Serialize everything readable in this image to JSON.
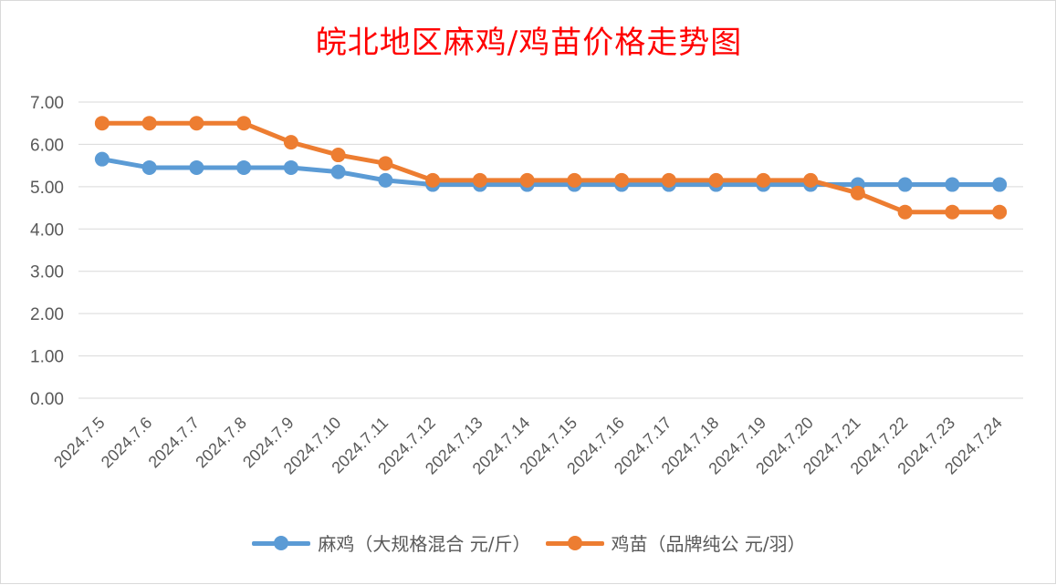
{
  "chart_data": {
    "type": "line",
    "title": "皖北地区麻鸡/鸡苗价格走势图",
    "xlabel": "",
    "ylabel": "",
    "ylim": [
      0,
      7
    ],
    "yticks": [
      "0.00",
      "1.00",
      "2.00",
      "3.00",
      "4.00",
      "5.00",
      "6.00",
      "7.00"
    ],
    "grid": true,
    "legend_position": "bottom",
    "categories": [
      "2024.7.5",
      "2024.7.6",
      "2024.7.7",
      "2024.7.8",
      "2024.7.9",
      "2024.7.10",
      "2024.7.11",
      "2024.7.12",
      "2024.7.13",
      "2024.7.14",
      "2024.7.15",
      "2024.7.16",
      "2024.7.17",
      "2024.7.18",
      "2024.7.19",
      "2024.7.20",
      "2024.7.21",
      "2024.7.22",
      "2024.7.23",
      "2024.7.24"
    ],
    "series": [
      {
        "name": "麻鸡（大规格混合 元/斤）",
        "color": "#5b9bd5",
        "values": [
          5.65,
          5.45,
          5.45,
          5.45,
          5.45,
          5.35,
          5.15,
          5.05,
          5.05,
          5.05,
          5.05,
          5.05,
          5.05,
          5.05,
          5.05,
          5.05,
          5.05,
          5.05,
          5.05,
          5.05
        ]
      },
      {
        "name": "鸡苗（品牌纯公 元/羽）",
        "color": "#ed7d31",
        "values": [
          6.5,
          6.5,
          6.5,
          6.5,
          6.05,
          5.75,
          5.55,
          5.15,
          5.15,
          5.15,
          5.15,
          5.15,
          5.15,
          5.15,
          5.15,
          5.15,
          4.85,
          4.4,
          4.4,
          4.4
        ]
      }
    ]
  }
}
